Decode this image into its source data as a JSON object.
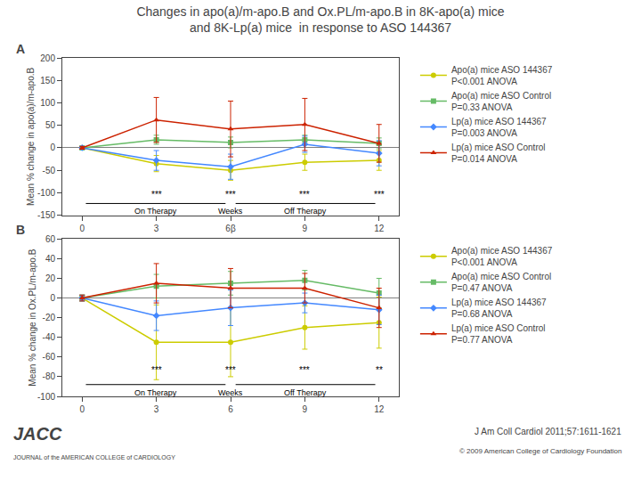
{
  "title": [
    "Changes in apo(a)/m-apo.B and Ox.PL/m-apo.B in 8K-apo(a) mice",
    "and 8K-Lp(a) mice  in response to ASO 144367"
  ],
  "annotations": {
    "on_therapy": "On Therapy",
    "weeks": "Weeks",
    "off_therapy": "Off Therapy",
    "logo": "JACC",
    "logo_subtitle": "JOURNAL of the AMERICAN COLLEGE of CARDIOLOGY",
    "citation": "J Am Coll Cardiol 2011;57:1611-1621",
    "copyright": "© 2009 American College of Cardiology Foundation"
  },
  "chart_data": [
    {
      "type": "line",
      "title": "A",
      "ylabel": "Mean % change in apo(a)/m-apo.B",
      "x": [
        0,
        3,
        6,
        9,
        12
      ],
      "xlim": [
        -0.8,
        12.8
      ],
      "xticks": [
        0,
        3,
        {
          "value": 6,
          "label": "6β"
        },
        9,
        12
      ],
      "ylim": [
        -150,
        200
      ],
      "yticks": [
        -150,
        -100,
        -50,
        0,
        50,
        100,
        150,
        200
      ],
      "grid": false,
      "legend": "right",
      "series": [
        {
          "name": "Apo(a) mice ASO 144367",
          "annotation": "P<0.001 ANOVA",
          "color": "#cccc00",
          "marker": "circle",
          "values": [
            0,
            -35,
            -50,
            -32,
            -28
          ],
          "errors": [
            3,
            18,
            22,
            18,
            22
          ]
        },
        {
          "name": "Apo(a) mice ASO Control",
          "annotation": "P=0.33 ANOVA",
          "color": "#66bb66",
          "marker": "square",
          "values": [
            0,
            18,
            12,
            18,
            10
          ],
          "errors": [
            3,
            10,
            12,
            10,
            12
          ]
        },
        {
          "name": "Lp(a) mice ASO 144367",
          "annotation": "P=0.003 ANOVA",
          "color": "#4488ff",
          "marker": "diamond",
          "values": [
            0,
            -28,
            -42,
            8,
            -12
          ],
          "errors": [
            3,
            22,
            28,
            18,
            28
          ]
        },
        {
          "name": "Lp(a) mice ASO Control",
          "annotation": "P=0.014 ANOVA",
          "color": "#cc2200",
          "marker": "triangle-up",
          "values": [
            0,
            62,
            42,
            52,
            10
          ],
          "errors": [
            3,
            50,
            62,
            58,
            42
          ]
        }
      ],
      "annotations": [
        {
          "text": "***",
          "x": 3,
          "y": -118
        },
        {
          "text": "***",
          "x": 6,
          "y": -118
        },
        {
          "text": "***",
          "x": 9,
          "y": -118
        },
        {
          "text": "***",
          "x": 12,
          "y": -118
        }
      ]
    },
    {
      "type": "line",
      "title": "B",
      "ylabel": "Mean % change in Ox.PL/m-apo.B",
      "x": [
        0,
        3,
        6,
        9,
        12
      ],
      "xlim": [
        -0.8,
        12.8
      ],
      "xticks": [
        0,
        3,
        6,
        9,
        12
      ],
      "ylim": [
        -100,
        60
      ],
      "yticks": [
        -100,
        -80,
        -60,
        -40,
        -20,
        0,
        20,
        40,
        60
      ],
      "grid": false,
      "legend": "right",
      "series": [
        {
          "name": "Apo(a) mice ASO 144367",
          "annotation": "P<0.001 ANOVA",
          "color": "#cccc00",
          "marker": "circle",
          "values": [
            0,
            -45,
            -45,
            -30,
            -25
          ],
          "errors": [
            3,
            38,
            35,
            22,
            26
          ]
        },
        {
          "name": "Apo(a) mice ASO Control",
          "annotation": "P=0.47 ANOVA",
          "color": "#66bb66",
          "marker": "square",
          "values": [
            0,
            12,
            15,
            18,
            5
          ],
          "errors": [
            3,
            12,
            12,
            10,
            15
          ]
        },
        {
          "name": "Lp(a) mice ASO 144367",
          "annotation": "P=0.68 ANOVA",
          "color": "#4488ff",
          "marker": "diamond",
          "values": [
            0,
            -18,
            -10,
            -5,
            -12
          ],
          "errors": [
            3,
            15,
            18,
            10,
            15
          ]
        },
        {
          "name": "Lp(a) mice ASO Control",
          "annotation": "P=0.77 ANOVA",
          "color": "#cc2200",
          "marker": "triangle-up",
          "values": [
            0,
            15,
            10,
            10,
            -10
          ],
          "errors": [
            3,
            20,
            20,
            15,
            20
          ]
        }
      ],
      "annotations": [
        {
          "text": "***",
          "x": 3,
          "y": -80
        },
        {
          "text": "***",
          "x": 6,
          "y": -80
        },
        {
          "text": "***",
          "x": 9,
          "y": -80
        },
        {
          "text": "**",
          "x": 12,
          "y": -80
        }
      ]
    }
  ]
}
